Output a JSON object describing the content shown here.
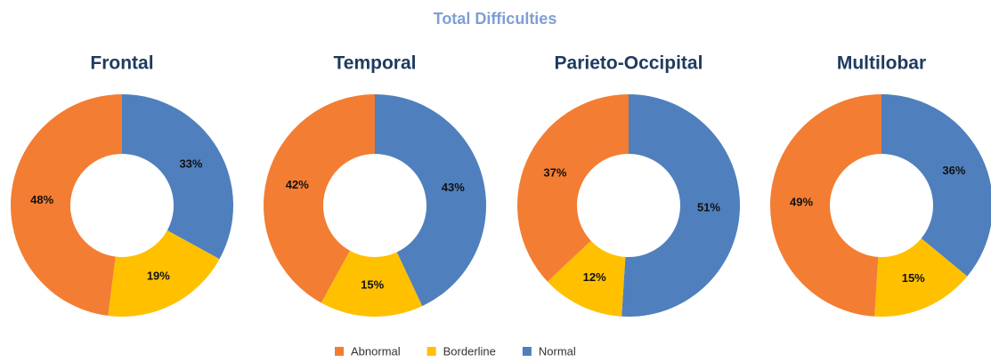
{
  "title": "Total Difficulties",
  "chart_data": [
    {
      "type": "pie",
      "title": "Frontal",
      "categories": [
        "Normal",
        "Borderline",
        "Abnormal"
      ],
      "values": [
        33,
        19,
        48
      ],
      "value_labels": [
        "33%",
        "19%",
        "48%"
      ],
      "colors": [
        "#4f7fbd",
        "#ffc000",
        "#f37d32"
      ],
      "donut": true
    },
    {
      "type": "pie",
      "title": "Temporal",
      "categories": [
        "Normal",
        "Borderline",
        "Abnormal"
      ],
      "values": [
        43,
        15,
        42
      ],
      "value_labels": [
        "43%",
        "15%",
        "42%"
      ],
      "colors": [
        "#4f7fbd",
        "#ffc000",
        "#f37d32"
      ],
      "donut": true
    },
    {
      "type": "pie",
      "title": "Parieto-Occipital",
      "categories": [
        "Normal",
        "Borderline",
        "Abnormal"
      ],
      "values": [
        51,
        12,
        37
      ],
      "value_labels": [
        "51%",
        "12%",
        "37%"
      ],
      "colors": [
        "#4f7fbd",
        "#ffc000",
        "#f37d32"
      ],
      "donut": true
    },
    {
      "type": "pie",
      "title": "Multilobar",
      "categories": [
        "Normal",
        "Borderline",
        "Abnormal"
      ],
      "values": [
        36,
        15,
        49
      ],
      "value_labels": [
        "36%",
        "15%",
        "49%"
      ],
      "colors": [
        "#4f7fbd",
        "#ffc000",
        "#f37d32"
      ],
      "donut": true
    }
  ],
  "legend_order": [
    2,
    1,
    0
  ]
}
